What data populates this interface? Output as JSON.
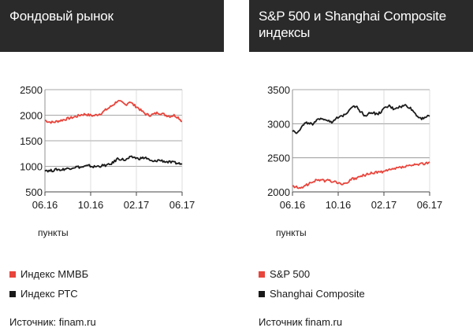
{
  "colors": {
    "red": "#e8453c",
    "black": "#1a1a1a",
    "header_bg": "#2a2a2a"
  },
  "panels": [
    {
      "title": "Фондовый рынок",
      "units": "пункты",
      "source": "Источник: finam.ru",
      "legend": [
        {
          "label": "Индекс ММВБ",
          "color": "#e8453c"
        },
        {
          "label": "Индекс РТС",
          "color": "#1a1a1a"
        }
      ]
    },
    {
      "title": "S&P 500 и Shanghai Composite индексы",
      "units": "пункты",
      "source": "Источник finam.ru",
      "legend": [
        {
          "label": "S&P 500",
          "color": "#e8453c"
        },
        {
          "label": "Shanghai Composite",
          "color": "#1a1a1a"
        }
      ]
    }
  ],
  "chart_data": [
    {
      "type": "line",
      "title": "Фондовый рынок",
      "ylabel": "пункты",
      "ylim": [
        500,
        2500
      ],
      "yticks": [
        500,
        1000,
        1500,
        2000,
        2500
      ],
      "xticks": [
        "06.16",
        "10.16",
        "02.17",
        "06.17"
      ],
      "grid": true,
      "series": [
        {
          "name": "Индекс ММВБ",
          "color": "#e8453c",
          "values": [
            1900,
            1870,
            1860,
            1880,
            1900,
            1920,
            1940,
            1960,
            1980,
            2010,
            2020,
            2000,
            1990,
            2010,
            2040,
            2100,
            2150,
            2210,
            2280,
            2250,
            2200,
            2270,
            2200,
            2150,
            2080,
            2020,
            2000,
            2020,
            2050,
            2030,
            2000,
            1980,
            2000,
            1960,
            1880
          ]
        },
        {
          "name": "Индекс РТС",
          "color": "#1a1a1a",
          "values": [
            930,
            910,
            920,
            940,
            930,
            950,
            960,
            980,
            990,
            980,
            1000,
            1010,
            990,
            1000,
            1010,
            1020,
            1030,
            1080,
            1150,
            1140,
            1120,
            1170,
            1180,
            1150,
            1160,
            1170,
            1110,
            1090,
            1120,
            1110,
            1090,
            1080,
            1070,
            1060,
            1040
          ]
        }
      ]
    },
    {
      "type": "line",
      "title": "S&P 500 и Shanghai Composite индексы",
      "ylabel": "пункты",
      "ylim": [
        2000,
        3500
      ],
      "yticks": [
        2000,
        2500,
        3000,
        3500
      ],
      "xticks": [
        "06.16",
        "10.16",
        "02.17",
        "06.17"
      ],
      "grid": true,
      "series": [
        {
          "name": "S&P 500",
          "color": "#e8453c",
          "values": [
            2080,
            2070,
            2040,
            2100,
            2110,
            2150,
            2170,
            2180,
            2160,
            2170,
            2150,
            2140,
            2120,
            2110,
            2160,
            2190,
            2200,
            2230,
            2250,
            2260,
            2280,
            2290,
            2290,
            2300,
            2320,
            2330,
            2350,
            2360,
            2370,
            2380,
            2390,
            2400,
            2410,
            2420,
            2440
          ]
        },
        {
          "name": "Shanghai Composite",
          "color": "#1a1a1a",
          "values": [
            2900,
            2870,
            2930,
            3000,
            3020,
            2980,
            3040,
            3090,
            3060,
            3050,
            3020,
            3080,
            3100,
            3140,
            3200,
            3270,
            3240,
            3170,
            3120,
            3150,
            3170,
            3130,
            3180,
            3230,
            3260,
            3220,
            3240,
            3250,
            3270,
            3240,
            3180,
            3110,
            3080,
            3100,
            3110
          ]
        }
      ]
    }
  ]
}
